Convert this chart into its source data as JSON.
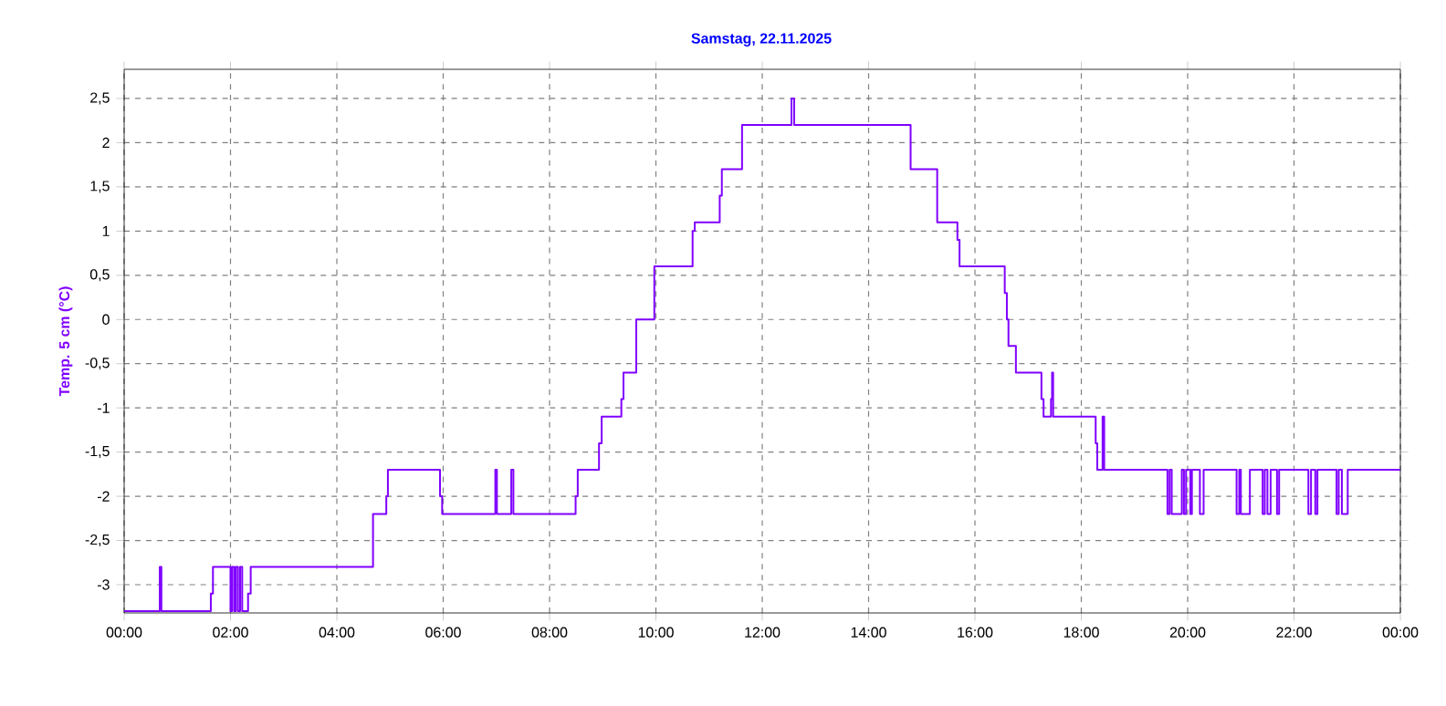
{
  "chart_data": {
    "type": "step",
    "title": "Samstag, 22.11.2025",
    "ylabel": "Temp. 5 cm (°C)",
    "color": "#8000ff",
    "grid": true,
    "xlim": [
      0,
      24
    ],
    "ylim": [
      -3.32,
      2.83
    ],
    "xticks": [
      {
        "value": 0,
        "label": "00:00"
      },
      {
        "value": 2,
        "label": "02:00"
      },
      {
        "value": 4,
        "label": "04:00"
      },
      {
        "value": 6,
        "label": "06:00"
      },
      {
        "value": 8,
        "label": "08:00"
      },
      {
        "value": 10,
        "label": "10:00"
      },
      {
        "value": 12,
        "label": "12:00"
      },
      {
        "value": 14,
        "label": "14:00"
      },
      {
        "value": 16,
        "label": "16:00"
      },
      {
        "value": 18,
        "label": "18:00"
      },
      {
        "value": 20,
        "label": "20:00"
      },
      {
        "value": 22,
        "label": "22:00"
      },
      {
        "value": 24,
        "label": "00:00"
      }
    ],
    "yticks": [
      {
        "value": -3,
        "label": "-3"
      },
      {
        "value": -2.5,
        "label": "-2,5"
      },
      {
        "value": -2,
        "label": "-2"
      },
      {
        "value": -1.5,
        "label": "-1,5"
      },
      {
        "value": -1,
        "label": "-1"
      },
      {
        "value": -0.5,
        "label": "-0,5"
      },
      {
        "value": 0,
        "label": "0"
      },
      {
        "value": 0.5,
        "label": "0,5"
      },
      {
        "value": 1,
        "label": "1"
      },
      {
        "value": 1.5,
        "label": "1,5"
      },
      {
        "value": 2,
        "label": "2"
      },
      {
        "value": 2.5,
        "label": "2,5"
      }
    ],
    "x": [
      0,
      0.67,
      0.7,
      1.63,
      1.67,
      2.0,
      2.03,
      2.07,
      2.1,
      2.14,
      2.18,
      2.22,
      2.33,
      2.38,
      4.68,
      4.93,
      4.96,
      5.94,
      5.98,
      6.98,
      7.01,
      7.28,
      7.32,
      8.49,
      8.53,
      8.93,
      8.98,
      9.35,
      9.39,
      9.63,
      9.97,
      10.69,
      10.73,
      11.2,
      11.24,
      11.62,
      12.55,
      12.57,
      12.6,
      14.79,
      15.29,
      15.67,
      15.71,
      16.56,
      16.6,
      16.63,
      16.77,
      17.25,
      17.29,
      17.43,
      17.45,
      17.47,
      18.27,
      18.3,
      18.4,
      18.43,
      19.62,
      19.66,
      19.7,
      19.89,
      19.93,
      19.97,
      20.05,
      20.08,
      20.23,
      20.3,
      20.92,
      20.97,
      21.0,
      21.17,
      21.41,
      21.45,
      21.5,
      21.56,
      21.68,
      21.72,
      22.27,
      22.32,
      22.4,
      22.44,
      22.8,
      22.84,
      22.9,
      23.01,
      24
    ],
    "values": [
      -3.3,
      -2.8,
      -3.3,
      -3.1,
      -2.8,
      -3.3,
      -2.8,
      -3.3,
      -2.8,
      -3.3,
      -2.8,
      -3.3,
      -3.1,
      -2.8,
      -2.2,
      -2.0,
      -1.7,
      -2.0,
      -2.2,
      -1.7,
      -2.2,
      -1.7,
      -2.2,
      -2.0,
      -1.7,
      -1.4,
      -1.1,
      -0.9,
      -0.6,
      0.0,
      0.6,
      1.0,
      1.1,
      1.4,
      1.7,
      2.2,
      2.5,
      null,
      2.2,
      1.7,
      1.1,
      0.9,
      0.6,
      0.3,
      0.0,
      -0.3,
      -0.6,
      -0.9,
      -1.1,
      -0.9,
      -0.6,
      -1.1,
      -1.4,
      -1.7,
      -1.1,
      -1.7,
      -2.2,
      -1.7,
      -2.2,
      -1.7,
      -2.2,
      -1.7,
      -2.2,
      -1.7,
      -2.2,
      -1.7,
      -2.2,
      -1.7,
      -2.2,
      -1.7,
      -2.2,
      -1.7,
      -2.2,
      -1.7,
      -2.2,
      -1.7,
      -2.2,
      -1.7,
      -2.2,
      -1.7,
      -2.2,
      -1.7,
      -2.2,
      -1.7,
      -1.7
    ]
  }
}
